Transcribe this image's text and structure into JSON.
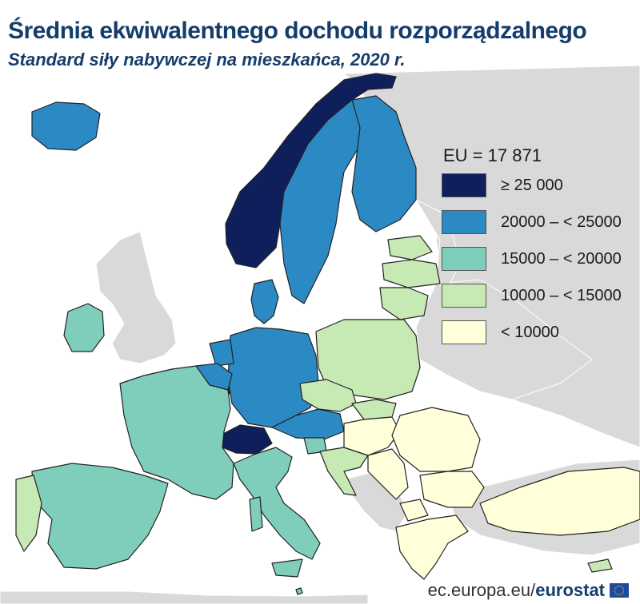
{
  "header": {
    "title": "Średnia ekwiwalentnego dochodu rozporządzalnego",
    "subtitle": "Standard siły nabywczej na mieszkańca,  2020 r."
  },
  "legend": {
    "title": "EU = 17 871",
    "items": [
      {
        "label": "≥ 25 000",
        "color": "#0f1f5c"
      },
      {
        "label": "20000 – < 25000",
        "color": "#2b8ac4"
      },
      {
        "label": "15000 – < 20000",
        "color": "#7fcdbb"
      },
      {
        "label": "10000 – < 15000",
        "color": "#c7e9b4"
      },
      {
        "label": "< 10000",
        "color": "#ffffd9"
      }
    ]
  },
  "map": {
    "no_data_color": "#d9d9d9",
    "sea_color": "#ffffff",
    "border_color": "#222222"
  },
  "footer": {
    "url": "ec.europa.eu/",
    "brand": "eurostat"
  }
}
